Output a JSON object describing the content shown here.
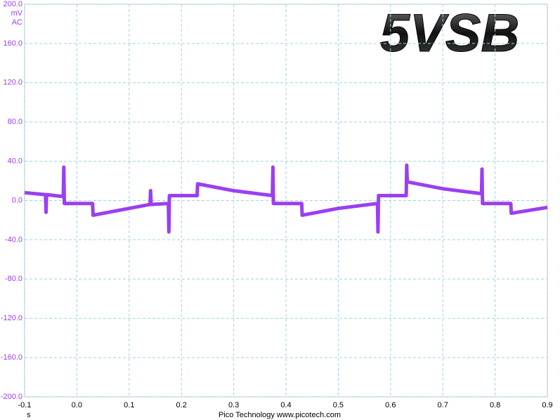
{
  "chart_data": {
    "type": "line",
    "title": "5VSB",
    "y_label": "mV",
    "coupling": "AC",
    "x_label": "s",
    "footer": "Pico Technology  www.picotech.com",
    "x": [
      -0.1,
      -0.06,
      -0.059,
      -0.058,
      -0.026,
      -0.025,
      -0.024,
      0.03,
      0.031,
      0.1,
      0.14,
      0.141,
      0.142,
      0.175,
      0.176,
      0.177,
      0.23,
      0.231,
      0.3,
      0.374,
      0.375,
      0.376,
      0.43,
      0.431,
      0.5,
      0.575,
      0.576,
      0.577,
      0.63,
      0.631,
      0.632,
      0.7,
      0.774,
      0.775,
      0.776,
      0.83,
      0.831,
      0.9
    ],
    "series": [
      {
        "color": "#9b3ff0",
        "values": [
          8,
          6,
          -12,
          6,
          4,
          34,
          -3,
          -3,
          -15,
          -8,
          -4,
          10,
          -4,
          -3,
          -32,
          5,
          5,
          17,
          10,
          5,
          34,
          -3,
          -3,
          -15,
          -8,
          -3,
          -32,
          5,
          5,
          36,
          19,
          12,
          7,
          32,
          -3,
          -3,
          -13,
          -7
        ]
      }
    ],
    "xlim": [
      -0.1,
      0.9
    ],
    "ylim": [
      -200,
      200
    ],
    "xticks": [
      -0.1,
      {
        "value": 0,
        "label": "0.0"
      },
      0.1,
      0.2,
      0.3,
      0.4,
      0.5,
      0.6,
      0.7,
      0.8,
      0.9
    ],
    "yticks": [
      {
        "value": -200,
        "label": "-200.0"
      },
      {
        "value": -160,
        "label": "-160.0"
      },
      {
        "value": -120,
        "label": "-120.0"
      },
      {
        "value": -80,
        "label": "-80.0"
      },
      {
        "value": -40,
        "label": "-40.0"
      },
      {
        "value": 0,
        "label": "0.0"
      },
      {
        "value": 40,
        "label": "40.0"
      },
      {
        "value": 80,
        "label": "80.0"
      },
      {
        "value": 120,
        "label": "120.0"
      },
      {
        "value": 160,
        "label": "160.0"
      },
      {
        "value": 200,
        "label": "200.0"
      }
    ],
    "grid": true
  }
}
